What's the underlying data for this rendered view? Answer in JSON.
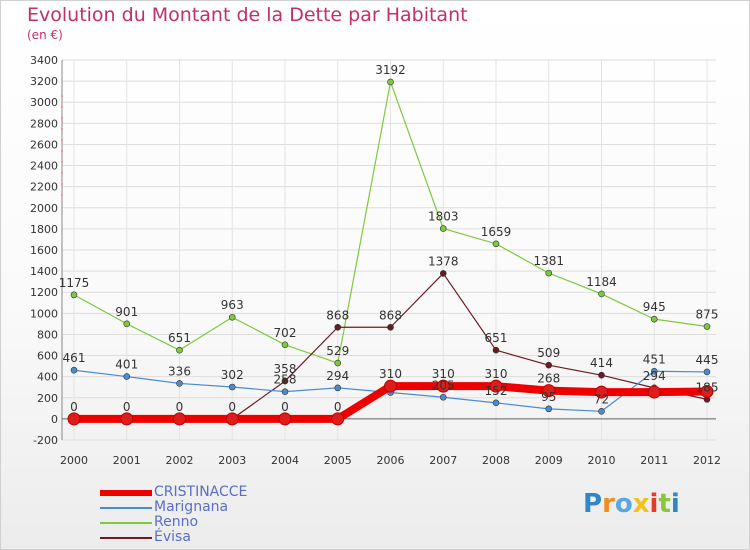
{
  "chart_data": {
    "type": "line",
    "title": "Evolution du Montant de la Dette par Habitant",
    "subtitle": "(en €)",
    "x": [
      "2000",
      "2001",
      "2002",
      "2003",
      "2004",
      "2005",
      "2006",
      "2007",
      "2008",
      "2009",
      "2010",
      "2011",
      "2012"
    ],
    "ylim": [
      -200,
      3400
    ],
    "yticks": [
      -200,
      0,
      200,
      400,
      600,
      800,
      1000,
      1200,
      1400,
      1600,
      1800,
      2000,
      2200,
      2400,
      2600,
      2800,
      3000,
      3200,
      3400
    ],
    "series": [
      {
        "name": "CRISTINACCE",
        "color": "#ee0000",
        "values": [
          0,
          0,
          0,
          0,
          0,
          0,
          310,
          310,
          310,
          268,
          254,
          254,
          260
        ],
        "labels": [
          "0",
          "0",
          "0",
          "0",
          "0",
          "0",
          "310",
          "310",
          "310",
          "268",
          "",
          "",
          ""
        ]
      },
      {
        "name": "Marignana",
        "color": "#4a8cd0",
        "values": [
          461,
          401,
          336,
          302,
          258,
          294,
          250,
          205,
          152,
          95,
          72,
          451,
          445
        ],
        "labels": [
          "461",
          "401",
          "336",
          "302",
          "258",
          "294",
          "",
          "205",
          "152",
          "95",
          "72",
          "451",
          "445"
        ]
      },
      {
        "name": "Renno",
        "color": "#7ec93e",
        "values": [
          1175,
          901,
          651,
          963,
          702,
          529,
          3192,
          1803,
          1659,
          1381,
          1184,
          945,
          875
        ],
        "labels": [
          "1175",
          "901",
          "651",
          "963",
          "702",
          "529",
          "3192",
          "1803",
          "1659",
          "1381",
          "1184",
          "945",
          "875"
        ]
      },
      {
        "name": "Évisa",
        "color": "#6b1a22",
        "values": [
          0,
          0,
          0,
          0,
          358,
          868,
          868,
          1378,
          651,
          509,
          414,
          294,
          185
        ],
        "labels": [
          "",
          "",
          "",
          "",
          "358",
          "868",
          "868",
          "1378",
          "651",
          "509",
          "414",
          "294",
          "185"
        ]
      }
    ]
  },
  "legend": {
    "items": [
      {
        "label": "CRISTINACCE"
      },
      {
        "label": "Marignana"
      },
      {
        "label": "Renno"
      },
      {
        "label": "Évisa"
      }
    ]
  },
  "logo": {
    "letters": [
      "P",
      "r",
      "o",
      "x",
      "i",
      "t",
      "i"
    ]
  }
}
